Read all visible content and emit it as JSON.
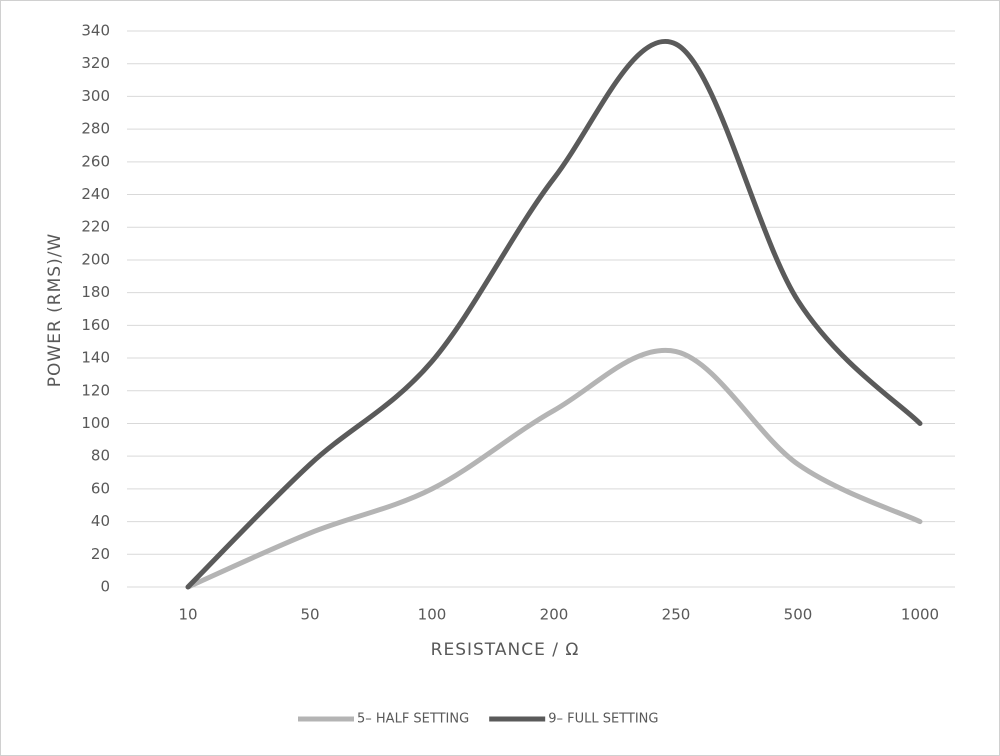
{
  "chart_data": {
    "type": "line",
    "x_label": "RESISTANCE / Ω",
    "y_label": "POWER (RMS)/W",
    "categories": [
      "10",
      "50",
      "100",
      "200",
      "250",
      "500",
      "1000"
    ],
    "series": [
      {
        "name": "5– HALF SETTING",
        "color": "#b4b4b4",
        "values": [
          0,
          33,
          60,
          108,
          144,
          75,
          40
        ]
      },
      {
        "name": "9– FULL SETTING",
        "color": "#5a5a5a",
        "values": [
          0,
          75,
          138,
          250,
          332,
          175,
          100
        ]
      }
    ],
    "ylim": [
      0,
      340
    ],
    "yticks": [
      0,
      20,
      40,
      60,
      80,
      100,
      120,
      140,
      160,
      180,
      200,
      220,
      240,
      260,
      280,
      300,
      320,
      340
    ],
    "grid": true,
    "legend": "bottom"
  }
}
